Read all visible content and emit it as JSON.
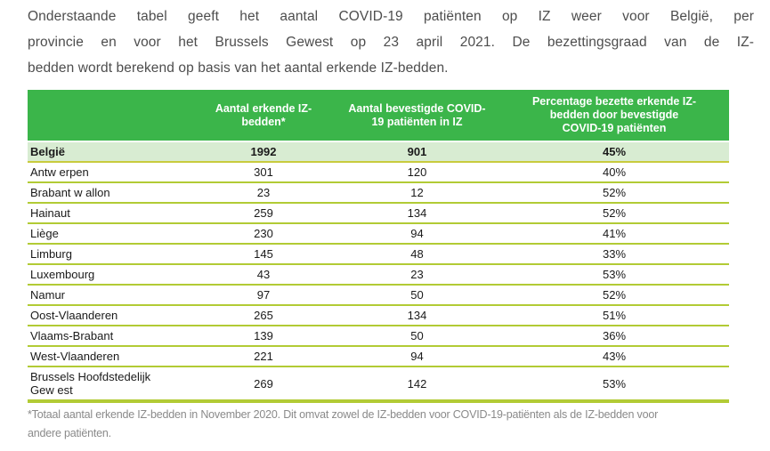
{
  "intro": {
    "lines": [
      "Onderstaande tabel geeft het aantal COVID-19 patiënten op IZ weer voor België, per",
      "provincie en voor het Brussels Gewest op 23 april 2021. De bezettingsgraad van de IZ-",
      "bedden wordt berekend op basis van het aantal erkende IZ-bedden."
    ]
  },
  "table": {
    "columns": [
      "",
      "Aantal erkende IZ-\nbedden*",
      "Aantal bevestigde COVID-\n19 patiënten in IZ",
      "Percentage bezette erkende IZ-\nbedden door bevestigde\nCOVID-19 patiënten"
    ],
    "total_row": {
      "region": "België",
      "beds": "1992",
      "patients": "901",
      "pct": "45%"
    },
    "rows": [
      {
        "region": "Antw erpen",
        "beds": "301",
        "patients": "120",
        "pct": "40%"
      },
      {
        "region": "Brabant w allon",
        "beds": "23",
        "patients": "12",
        "pct": "52%"
      },
      {
        "region": "Hainaut",
        "beds": "259",
        "patients": "134",
        "pct": "52%"
      },
      {
        "region": "Liège",
        "beds": "230",
        "patients": "94",
        "pct": "41%"
      },
      {
        "region": "Limburg",
        "beds": "145",
        "patients": "48",
        "pct": "33%"
      },
      {
        "region": "Luxembourg",
        "beds": "43",
        "patients": "23",
        "pct": "53%"
      },
      {
        "region": "Namur",
        "beds": "97",
        "patients": "50",
        "pct": "52%"
      },
      {
        "region": "Oost-Vlaanderen",
        "beds": "265",
        "patients": "134",
        "pct": "51%"
      },
      {
        "region": "Vlaams-Brabant",
        "beds": "139",
        "patients": "50",
        "pct": "36%"
      },
      {
        "region": "West-Vlaanderen",
        "beds": "221",
        "patients": "94",
        "pct": "43%"
      },
      {
        "region": "Brussels Hoofdstedelijk\nGew est",
        "beds": "269",
        "patients": "142",
        "pct": "53%"
      }
    ]
  },
  "footnote": {
    "lines": [
      "*Totaal aantal erkende IZ-bedden in November 2020. Dit omvat zowel de IZ-bedden voor COVID-19-patiënten als de IZ-bedden voor",
      "andere patiënten."
    ]
  },
  "colors": {
    "header_green": "#3bb54a",
    "total_row_green": "#d8ecd2",
    "divider_lime": "#b2cb35",
    "total_divider_olive": "#c8cb3d",
    "paragraph_text": "#4d4d4d",
    "body_text": "#1a1a1a",
    "footnote_text": "#8a8a8a"
  }
}
